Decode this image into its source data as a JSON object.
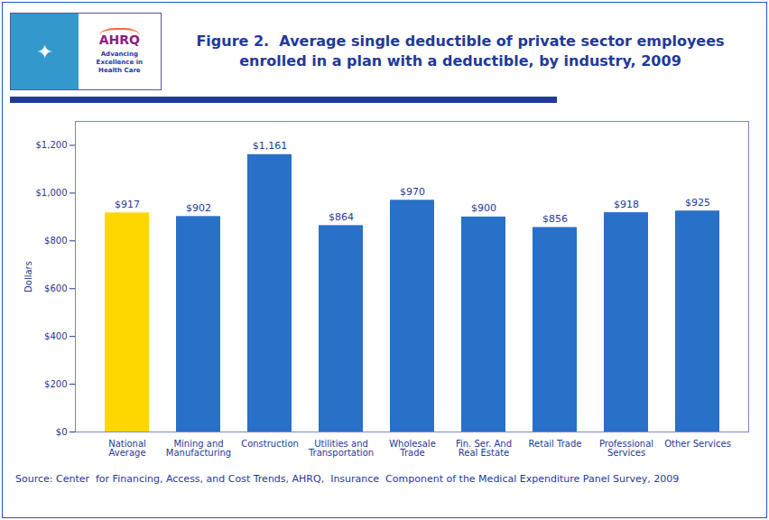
{
  "chart_data": {
    "type": "bar",
    "title": "Figure 2.  Average single deductible of private sector employees\nenrolled in a plan with a deductible, by industry, 2009",
    "categories": [
      "National\nAverage",
      "Mining and\nManufacturing",
      "Construction",
      "Utilities and\nTransportation",
      "Wholesale\nTrade",
      "Fin. Ser. And\nReal Estate",
      "Retail Trade",
      "Professional\nServices",
      "Other Services"
    ],
    "values": [
      917,
      902,
      1161,
      864,
      970,
      900,
      856,
      918,
      925
    ],
    "value_labels": [
      "$917",
      "$902",
      "$1,161",
      "$864",
      "$970",
      "$900",
      "$856",
      "$918",
      "$925"
    ],
    "data_labels": true,
    "colors": [
      "#FFD700",
      "#2970C8",
      "#2970C8",
      "#2970C8",
      "#2970C8",
      "#2970C8",
      "#2970C8",
      "#2970C8",
      "#2970C8"
    ],
    "ylabel": "Dollars",
    "ylim": [
      0,
      1300
    ],
    "yticks": [
      {
        "value": 0,
        "label": "$0"
      },
      {
        "value": 200,
        "label": "$200"
      },
      {
        "value": 400,
        "label": "$400"
      },
      {
        "value": 600,
        "label": "$600"
      },
      {
        "value": 800,
        "label": "$800"
      },
      {
        "value": 1000,
        "label": "$1,000"
      },
      {
        "value": 1200,
        "label": "$1,200"
      }
    ],
    "grid": false,
    "caption": "Source: Center  for Financing, Access, and Cost Trends, AHRQ,  Insurance  Component of the Medical Expenditure Panel Survey, 2009",
    "annotations": [
      "✦",
      "AHRQ",
      "Advancing\nExcellence in\nHealth Care"
    ],
    "color": "#1F3A9A"
  }
}
